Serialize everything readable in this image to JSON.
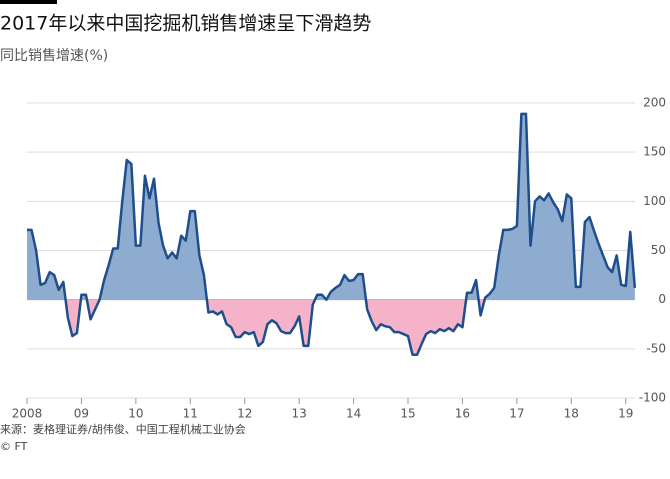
{
  "chart_data": {
    "type": "area",
    "title": "2017年以来中国挖掘机销售增速呈下滑趋势",
    "subtitle": "同比销售增速(%)",
    "source": "来源：麦格理证券/胡伟俊、中国工程机械工业协会",
    "credit": "© FT",
    "color": "#1f4e8c",
    "positive_color": "#8eacd0",
    "negative_color": "#f5b3c9",
    "grid": true,
    "xlim": [
      2008,
      2019.17
    ],
    "xticks": [
      2008,
      {
        "value": 2009,
        "label": "09"
      },
      {
        "value": 2010,
        "label": "10"
      },
      {
        "value": 2011,
        "label": "11"
      },
      {
        "value": 2012,
        "label": "12"
      },
      {
        "value": 2013,
        "label": "13"
      },
      {
        "value": 2014,
        "label": "14"
      },
      {
        "value": 2015,
        "label": "15"
      },
      {
        "value": 2016,
        "label": "16"
      },
      {
        "value": 2017,
        "label": "17"
      },
      {
        "value": 2018,
        "label": "18"
      },
      {
        "value": 2019,
        "label": "19"
      }
    ],
    "ylim": [
      -100,
      200
    ],
    "yticks": [
      -100,
      -50,
      0,
      50,
      100,
      150,
      200
    ],
    "x": [
      2008.0,
      2008.083,
      2008.167,
      2008.25,
      2008.333,
      2008.417,
      2008.5,
      2008.583,
      2008.667,
      2008.75,
      2008.833,
      2008.917,
      2009.0,
      2009.083,
      2009.167,
      2009.25,
      2009.333,
      2009.417,
      2009.5,
      2009.583,
      2009.667,
      2009.75,
      2009.833,
      2009.917,
      2010.0,
      2010.083,
      2010.167,
      2010.25,
      2010.333,
      2010.417,
      2010.5,
      2010.583,
      2010.667,
      2010.75,
      2010.833,
      2010.917,
      2011.0,
      2011.083,
      2011.167,
      2011.25,
      2011.333,
      2011.417,
      2011.5,
      2011.583,
      2011.667,
      2011.75,
      2011.833,
      2011.917,
      2012.0,
      2012.083,
      2012.167,
      2012.25,
      2012.333,
      2012.417,
      2012.5,
      2012.583,
      2012.667,
      2012.75,
      2012.833,
      2012.917,
      2013.0,
      2013.083,
      2013.167,
      2013.25,
      2013.333,
      2013.417,
      2013.5,
      2013.583,
      2013.667,
      2013.75,
      2013.833,
      2013.917,
      2014.0,
      2014.083,
      2014.167,
      2014.25,
      2014.333,
      2014.417,
      2014.5,
      2014.583,
      2014.667,
      2014.75,
      2014.833,
      2014.917,
      2015.0,
      2015.083,
      2015.167,
      2015.25,
      2015.333,
      2015.417,
      2015.5,
      2015.583,
      2015.667,
      2015.75,
      2015.833,
      2015.917,
      2016.0,
      2016.083,
      2016.167,
      2016.25,
      2016.333,
      2016.417,
      2016.5,
      2016.583,
      2016.667,
      2016.75,
      2016.833,
      2016.917,
      2017.0,
      2017.083,
      2017.167,
      2017.25,
      2017.333,
      2017.417,
      2017.5,
      2017.583,
      2017.667,
      2017.75,
      2017.833,
      2017.917,
      2018.0,
      2018.083,
      2018.167,
      2018.25,
      2018.333,
      2018.417,
      2018.5,
      2018.583,
      2018.667,
      2018.75,
      2018.833,
      2018.917,
      2019.0,
      2019.083,
      2019.167
    ],
    "values": [
      71,
      71,
      50,
      15,
      17,
      28,
      25,
      10,
      18,
      -18,
      -37,
      -34,
      5,
      5,
      -20,
      -10,
      0,
      20,
      35,
      52,
      52,
      100,
      142,
      138,
      55,
      55,
      126,
      103,
      123,
      78,
      55,
      42,
      48,
      42,
      65,
      60,
      90,
      90,
      45,
      25,
      -13,
      -12,
      -15,
      -12,
      -25,
      -28,
      -38,
      -38,
      -33,
      -35,
      -33,
      -47,
      -43,
      -25,
      -21,
      -24,
      -32,
      -34,
      -34,
      -27,
      -17,
      -47,
      -47,
      -5,
      5,
      5,
      0,
      8,
      12,
      15,
      25,
      19,
      20,
      26,
      26,
      -10,
      -22,
      -31,
      -25,
      -27,
      -28,
      -33,
      -33,
      -35,
      -37,
      -56,
      -56,
      -45,
      -35,
      -32,
      -34,
      -30,
      -32,
      -29,
      -32,
      -25,
      -28,
      7,
      7,
      20,
      -16,
      2,
      6,
      12,
      45,
      71,
      71,
      72,
      75,
      189,
      189,
      55,
      100,
      105,
      101,
      108,
      99,
      92,
      80,
      107,
      103,
      13,
      13,
      79,
      84,
      70,
      57,
      45,
      33,
      28,
      45,
      15,
      14,
      69,
      12
    ]
  }
}
